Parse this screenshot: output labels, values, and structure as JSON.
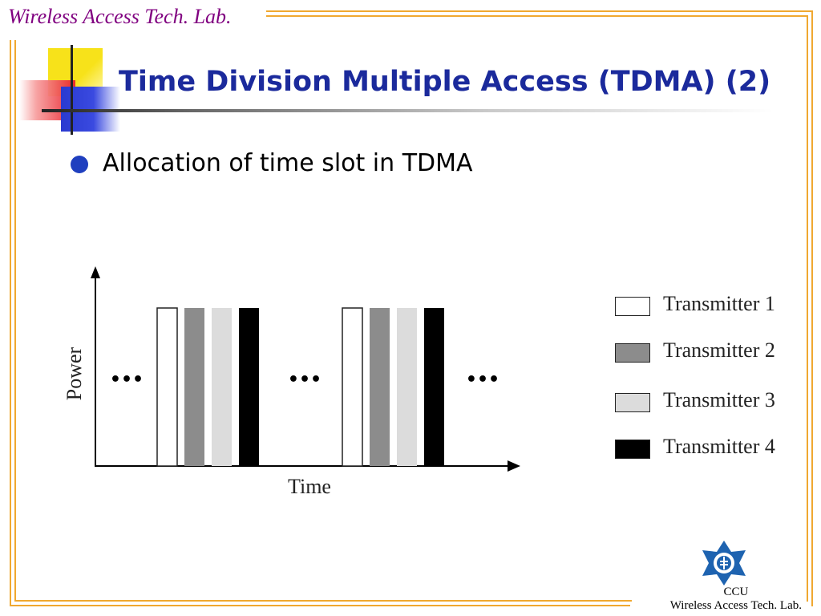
{
  "header": {
    "lab_name": "Wireless Access Tech. Lab."
  },
  "slide": {
    "title": "Time Division Multiple Access (TDMA) (2)",
    "bullets": [
      {
        "text": "Allocation of time slot in TDMA"
      }
    ]
  },
  "diagram": {
    "y_axis_label": "Power",
    "x_axis_label": "Time",
    "ellipsis": "•••",
    "frames": 2,
    "slot_order": [
      "Transmitter 1",
      "Transmitter 2",
      "Transmitter 3",
      "Transmitter 4"
    ],
    "legend": [
      {
        "label": "Transmitter 1",
        "color": "#ffffff"
      },
      {
        "label": "Transmitter 2",
        "color": "#8c8c8c"
      },
      {
        "label": "Transmitter 3",
        "color": "#dcdcdc"
      },
      {
        "label": "Transmitter 4",
        "color": "#000000"
      }
    ]
  },
  "footer": {
    "logo": "ccu-emblem-icon",
    "org_short": "CCU",
    "org_name": "Wireless Access Tech. Lab."
  },
  "theme": {
    "frame_color": "#f0a830",
    "title_color": "#1b2a9c",
    "header_color": "#800080",
    "bullet_color": "#1f3fbf"
  }
}
